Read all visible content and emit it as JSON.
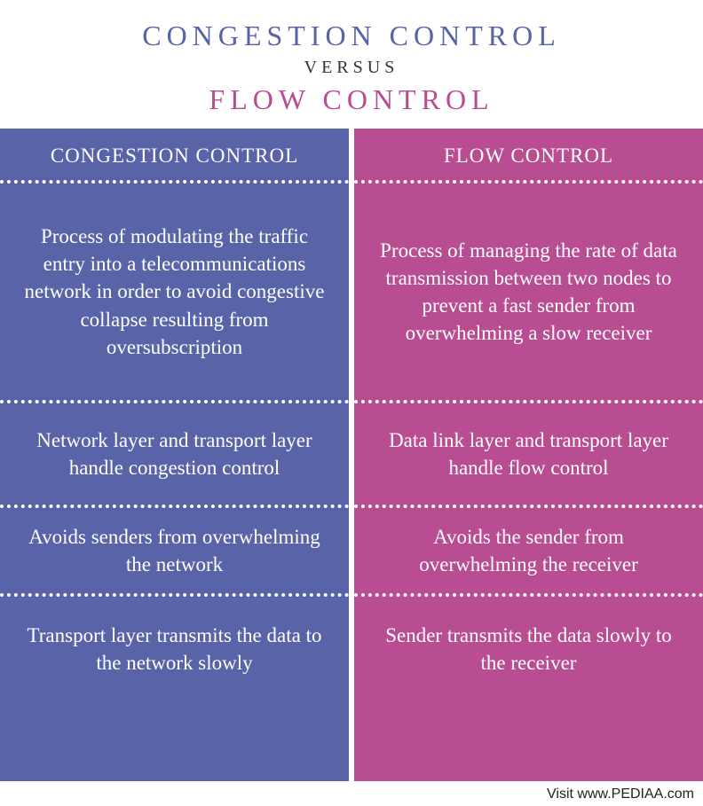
{
  "header": {
    "line1": "CONGESTION CONTROL",
    "versus": "VERSUS",
    "line2": "FLOW CONTROL",
    "line1_color": "#5863a8",
    "versus_color": "#333333",
    "line2_color": "#b94d92"
  },
  "left": {
    "bg_color": "#5863a8",
    "header": "CONGESTION CONTROL",
    "cells": [
      "Process of modulating the traffic entry into a telecommunications network in order to avoid congestive collapse resulting from oversubscription",
      "Network layer and transport layer handle congestion control",
      "Avoids senders from overwhelming the network",
      "Transport layer transmits the data to the network slowly"
    ]
  },
  "right": {
    "bg_color": "#b94d92",
    "header": "FLOW CONTROL",
    "cells": [
      "Process of managing the rate of data transmission between two nodes to prevent a fast sender from overwhelming a slow receiver",
      "Data link layer and transport layer handle flow control",
      "Avoids the sender from overwhelming the receiver",
      "Sender transmits the data slowly to the receiver"
    ]
  },
  "footer": "Visit www.PEDIAA.com"
}
